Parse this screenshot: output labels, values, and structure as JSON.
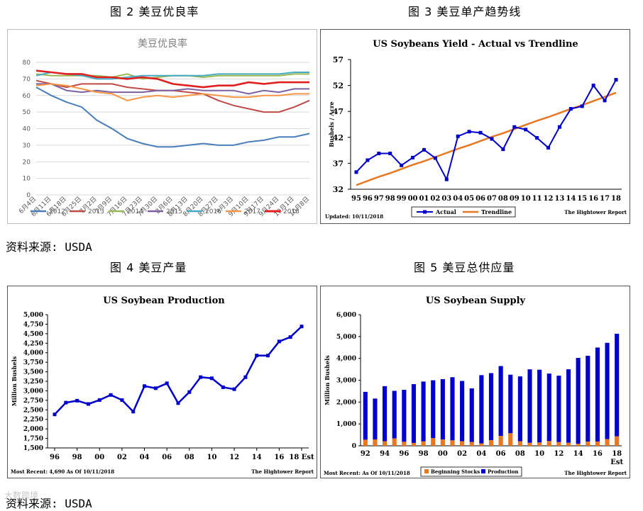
{
  "captions": {
    "fig2": "图 2 美豆优良率",
    "fig3": "图 3 美豆单产趋势线",
    "fig4": "图 4 美豆产量",
    "fig5": "图 5 美豆总供应量",
    "source1": "资料来源: USDA",
    "source2": "资料来源: USDA",
    "watermark": "大数跨境"
  },
  "chart_data": [
    {
      "type": "line",
      "title": "美豆优良率",
      "categories": [
        "6月4日",
        "6月11日",
        "6月18日",
        "6月25日",
        "7月2日",
        "7月9日",
        "7月16日",
        "7月23日",
        "7月30日",
        "8月6日",
        "8月13日",
        "8月20日",
        "8月27日",
        "9月3日",
        "9月10日",
        "9月17日",
        "9月24日",
        "10月1日",
        "10月8日"
      ],
      "ylim": [
        0,
        80
      ],
      "yticks": [
        0,
        10,
        20,
        30,
        40,
        50,
        60,
        70,
        80
      ],
      "legend": "bottom",
      "series": [
        {
          "name": "2012",
          "color": "#4a7ebb",
          "values": [
            65,
            60,
            56,
            53,
            45,
            40,
            34,
            31,
            29,
            29,
            30,
            31,
            30,
            30,
            32,
            33,
            35,
            35,
            37
          ]
        },
        {
          "name": "2013",
          "color": "#be4b48",
          "values": [
            69,
            67,
            65,
            67,
            67,
            67,
            65,
            64,
            63,
            63,
            62,
            61,
            57,
            54,
            52,
            50,
            50,
            53,
            57
          ]
        },
        {
          "name": "2014",
          "color": "#98b954",
          "values": [
            73,
            72,
            72,
            72,
            72,
            71,
            73,
            70,
            71,
            72,
            72,
            71,
            72,
            72,
            72,
            72,
            72,
            73,
            73
          ]
        },
        {
          "name": "2015",
          "color": "#7d60a0",
          "values": [
            67,
            67,
            63,
            62,
            63,
            62,
            62,
            62,
            63,
            63,
            64,
            63,
            63,
            63,
            61,
            63,
            62,
            64,
            64
          ]
        },
        {
          "name": "2016",
          "color": "#46aac5",
          "values": [
            72,
            74,
            73,
            72,
            70,
            70,
            71,
            72,
            72,
            72,
            72,
            72,
            73,
            73,
            73,
            73,
            73,
            74,
            74
          ]
        },
        {
          "name": "2017",
          "color": "#f79646",
          "values": [
            66,
            67,
            66,
            64,
            62,
            61,
            57,
            59,
            60,
            59,
            60,
            61,
            60,
            59,
            59,
            60,
            60,
            61,
            61
          ]
        },
        {
          "name": "2018",
          "color": "#e02020",
          "values": [
            75,
            74,
            73,
            73,
            71,
            71,
            70,
            71,
            70,
            67,
            66,
            65,
            66,
            66,
            68,
            67,
            68,
            68,
            68
          ]
        }
      ]
    },
    {
      "type": "line",
      "title": "US Soybeans Yield - Actual vs Trendline",
      "ylabel": "Bushels / Acre",
      "categories": [
        "95",
        "96",
        "97",
        "98",
        "99",
        "00",
        "01",
        "02",
        "03",
        "04",
        "05",
        "06",
        "07",
        "08",
        "09",
        "10",
        "11",
        "12",
        "13",
        "14",
        "15",
        "16",
        "17",
        "18"
      ],
      "ylim": [
        32,
        57
      ],
      "yticks": [
        32,
        37,
        42,
        47,
        52,
        57
      ],
      "legend": "bottom",
      "series": [
        {
          "name": "Actual",
          "color": "#0000cc",
          "values": [
            35.3,
            37.6,
            38.9,
            38.9,
            36.6,
            38.1,
            39.6,
            38.0,
            33.9,
            42.2,
            43.1,
            42.9,
            41.7,
            39.7,
            44.0,
            43.5,
            41.9,
            40.0,
            44.0,
            47.5,
            48.0,
            52.0,
            49.1,
            53.1
          ]
        },
        {
          "name": "Trendline",
          "color": "#e87722",
          "values": [
            32.8,
            33.6,
            34.4,
            35.1,
            35.9,
            36.7,
            37.4,
            38.2,
            39.0,
            39.8,
            40.5,
            41.3,
            42.1,
            42.8,
            43.6,
            44.4,
            45.2,
            45.9,
            46.7,
            47.5,
            48.2,
            49.0,
            49.8,
            50.6
          ]
        }
      ],
      "notes": {
        "left": "Updated: 10/11/2018",
        "right": "The Hightower Report"
      }
    },
    {
      "type": "line",
      "title": "US Soybean Production",
      "ylabel": "Million Bushels",
      "categories": [
        "96",
        "97",
        "98",
        "99",
        "00",
        "01",
        "02",
        "03",
        "04",
        "05",
        "06",
        "07",
        "08",
        "09",
        "10",
        "11",
        "12",
        "13",
        "14",
        "15",
        "16",
        "17",
        "18 Est"
      ],
      "xtick_labels": [
        "96",
        "98",
        "00",
        "02",
        "04",
        "06",
        "08",
        "10",
        "12",
        "14",
        "16",
        "18 Est"
      ],
      "ylim": [
        1500,
        5000
      ],
      "yticks": [
        "1,500",
        "1,750",
        "2,000",
        "2,250",
        "2,500",
        "2,750",
        "3,000",
        "3,250",
        "3,500",
        "3,750",
        "4,000",
        "4,250",
        "4,500",
        "4,750",
        "5,000"
      ],
      "series": [
        {
          "name": "Production",
          "color": "#0000cc",
          "values": [
            2380,
            2689,
            2741,
            2654,
            2758,
            2891,
            2756,
            2454,
            3124,
            3068,
            3197,
            2677,
            2967,
            3359,
            3329,
            3094,
            3042,
            3358,
            3927,
            3926,
            4296,
            4412,
            4690
          ]
        }
      ],
      "notes": {
        "left": "Most Recent: 4,690 As Of 10/11/2018",
        "right": "The Hightower Report"
      }
    },
    {
      "type": "bar",
      "title": "US Soybean Supply",
      "ylabel": "Million Bushels",
      "categories": [
        "92",
        "93",
        "94",
        "95",
        "96",
        "97",
        "98",
        "99",
        "00",
        "01",
        "02",
        "03",
        "04",
        "05",
        "06",
        "07",
        "08",
        "09",
        "10",
        "11",
        "12",
        "13",
        "14",
        "15",
        "16",
        "17",
        "18"
      ],
      "xtick_labels": [
        "92",
        "94",
        "96",
        "98",
        "00",
        "02",
        "04",
        "06",
        "08",
        "10",
        "12",
        "14",
        "16",
        "18 Est"
      ],
      "ylim": [
        0,
        6000
      ],
      "yticks": [
        "0",
        "1,000",
        "2,000",
        "3,000",
        "4,000",
        "5,000",
        "6,000"
      ],
      "stacked": true,
      "legend": "bottom",
      "series": [
        {
          "name": "Beginning Stocks",
          "color": "#e87722",
          "values": [
            278,
            292,
            209,
            335,
            183,
            132,
            200,
            348,
            290,
            248,
            208,
            178,
            112,
            256,
            449,
            574,
            205,
            138,
            151,
            215,
            169,
            141,
            92,
            191,
            197,
            302,
            438
          ]
        },
        {
          "name": "Production",
          "color": "#0000cc",
          "values": [
            2190,
            1870,
            2520,
            2180,
            2380,
            2690,
            2740,
            2650,
            2760,
            2890,
            2760,
            2450,
            3120,
            3070,
            3200,
            2680,
            2970,
            3360,
            3330,
            3090,
            3040,
            3360,
            3930,
            3930,
            4300,
            4410,
            4690
          ]
        }
      ],
      "notes": {
        "left": "Most Recent: As Of 10/11/2018",
        "right": "The Hightower Report"
      }
    }
  ]
}
